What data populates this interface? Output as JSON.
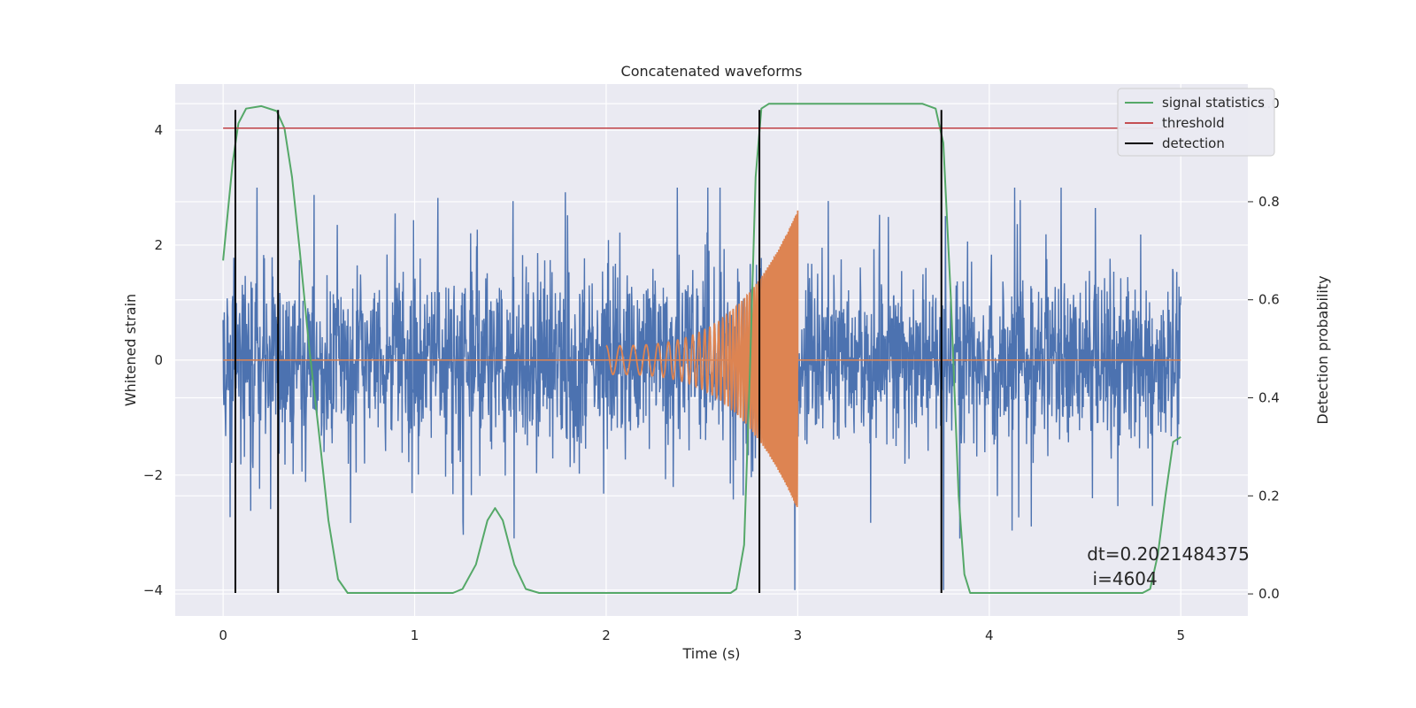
{
  "chart_data": {
    "type": "line",
    "title": "Concatenated waveforms",
    "xlabel": "Time (s)",
    "ylabel": "Whitened strain",
    "ylabel_right": "Detection probability",
    "xlim": [
      -0.25,
      5.35
    ],
    "ylim": [
      -4.45,
      4.8
    ],
    "ylim_right": [
      -0.045,
      1.04
    ],
    "x_ticks": [
      0,
      1,
      2,
      3,
      4,
      5
    ],
    "x_tick_labels": [
      "0",
      "1",
      "2",
      "3",
      "4",
      "5"
    ],
    "y_ticks": [
      -4,
      -2,
      0,
      2,
      4
    ],
    "y_tick_labels": [
      "−4",
      "−2",
      "0",
      "2",
      "4"
    ],
    "y_ticks_right": [
      0.0,
      0.2,
      0.4,
      0.6,
      0.8,
      1.0
    ],
    "y_tick_labels_right": [
      "0.0",
      "0.2",
      "0.4",
      "0.6",
      "0.8",
      "1.0"
    ],
    "grid": true,
    "legend_position": "top-right",
    "legend": [
      {
        "label": "signal statistics",
        "color": "#55a868"
      },
      {
        "label": "threshold",
        "color": "#c44e52"
      },
      {
        "label": "detection",
        "color": "#000000"
      }
    ],
    "series": [
      {
        "kind": "noise",
        "color": "#4c72b0",
        "x_range": [
          0,
          5
        ],
        "amplitude_typical": 1.0,
        "amplitude_peak": 3.0
      },
      {
        "kind": "chirp",
        "color": "#dd8452",
        "x_range": [
          2,
          3
        ],
        "amplitude_start": 0.25,
        "amplitude_end": 2.6
      },
      {
        "kind": "baseline",
        "color": "#dd8452",
        "x_range": [
          0,
          5
        ],
        "value": 0
      },
      {
        "name": "signal statistics",
        "axis": "right",
        "color": "#55a868",
        "points": [
          [
            0,
            0.68
          ],
          [
            0.02,
            0.76
          ],
          [
            0.05,
            0.88
          ],
          [
            0.08,
            0.96
          ],
          [
            0.12,
            0.99
          ],
          [
            0.2,
            0.995
          ],
          [
            0.28,
            0.985
          ],
          [
            0.32,
            0.95
          ],
          [
            0.36,
            0.85
          ],
          [
            0.4,
            0.7
          ],
          [
            0.45,
            0.5
          ],
          [
            0.5,
            0.33
          ],
          [
            0.55,
            0.15
          ],
          [
            0.6,
            0.03
          ],
          [
            0.65,
            0.002
          ],
          [
            1.2,
            0.002
          ],
          [
            1.25,
            0.01
          ],
          [
            1.32,
            0.06
          ],
          [
            1.38,
            0.15
          ],
          [
            1.42,
            0.175
          ],
          [
            1.46,
            0.15
          ],
          [
            1.52,
            0.06
          ],
          [
            1.58,
            0.01
          ],
          [
            1.65,
            0.002
          ],
          [
            2.65,
            0.002
          ],
          [
            2.68,
            0.01
          ],
          [
            2.72,
            0.1
          ],
          [
            2.75,
            0.45
          ],
          [
            2.78,
            0.85
          ],
          [
            2.81,
            0.99
          ],
          [
            2.85,
            1.0
          ],
          [
            3.65,
            1.0
          ],
          [
            3.72,
            0.99
          ],
          [
            3.76,
            0.92
          ],
          [
            3.8,
            0.6
          ],
          [
            3.84,
            0.2
          ],
          [
            3.87,
            0.04
          ],
          [
            3.9,
            0.002
          ],
          [
            4.8,
            0.002
          ],
          [
            4.84,
            0.01
          ],
          [
            4.88,
            0.08
          ],
          [
            4.92,
            0.2
          ],
          [
            4.96,
            0.31
          ],
          [
            5.0,
            0.32
          ]
        ]
      },
      {
        "name": "threshold",
        "axis": "right",
        "color": "#c44e52",
        "x_range": [
          0,
          5
        ],
        "value": 0.95
      },
      {
        "name": "detection",
        "axis": "left",
        "color": "#000000",
        "x": [
          0.064,
          0.287,
          2.8,
          3.75
        ],
        "y_range": [
          -4.05,
          4.35
        ]
      }
    ],
    "annotation": {
      "line1": "dt=0.2021484375",
      "line2": " i=4604",
      "x": 4.51,
      "y_frac": 0.105
    }
  }
}
